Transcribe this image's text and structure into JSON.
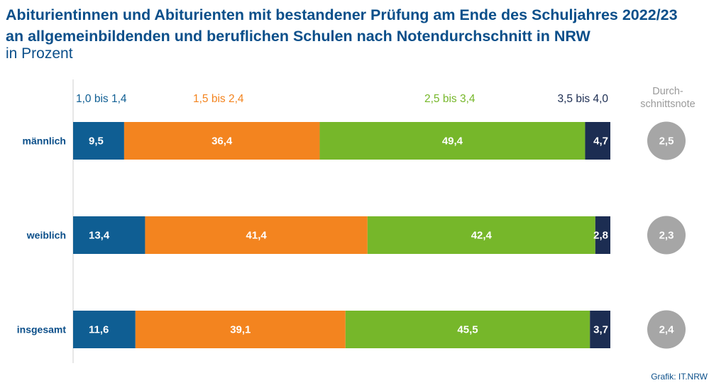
{
  "header": {
    "title_line1": "Abiturientinnen und Abiturienten mit bestandener Prüfung am Ende des Schuljahres 2022/23",
    "title_line2": "an allgemeinbildenden und beruflichen Schulen nach Notendurchschnitt in NRW",
    "subtitle": "in Prozent"
  },
  "credit": "Grafik: IT.NRW",
  "colors": {
    "seg1": "#0f5e93",
    "seg2": "#f3841f",
    "seg3": "#76b72a",
    "seg4": "#1c2d52",
    "avg_circle": "#a6a6a6",
    "category_text": "#0b4f8a"
  },
  "chart_data": {
    "type": "bar",
    "orientation": "horizontal",
    "stacked": true,
    "xlim": [
      0,
      100
    ],
    "categories": [
      "männlich",
      "weiblich",
      "insgesamt"
    ],
    "series": [
      {
        "name": "1,0 bis 1,4",
        "values": [
          9.5,
          13.4,
          11.6
        ],
        "labels": [
          "9,5",
          "13,4",
          "11,6"
        ]
      },
      {
        "name": "1,5 bis 2,4",
        "values": [
          36.4,
          41.4,
          39.1
        ],
        "labels": [
          "36,4",
          "41,4",
          "39,1"
        ]
      },
      {
        "name": "2,5 bis 3,4",
        "values": [
          49.4,
          42.4,
          45.5
        ],
        "labels": [
          "49,4",
          "42,4",
          "45,5"
        ]
      },
      {
        "name": "3,5 bis 4,0",
        "values": [
          4.7,
          2.8,
          3.7
        ],
        "labels": [
          "4,7",
          "2,8",
          "3,7"
        ]
      }
    ],
    "average_header": [
      "Durch-",
      "schnittsnote"
    ],
    "average_grade": [
      2.5,
      2.3,
      2.4
    ],
    "average_labels": [
      "2,5",
      "2,3",
      "2,4"
    ],
    "legend_position": "top",
    "grid": false
  }
}
